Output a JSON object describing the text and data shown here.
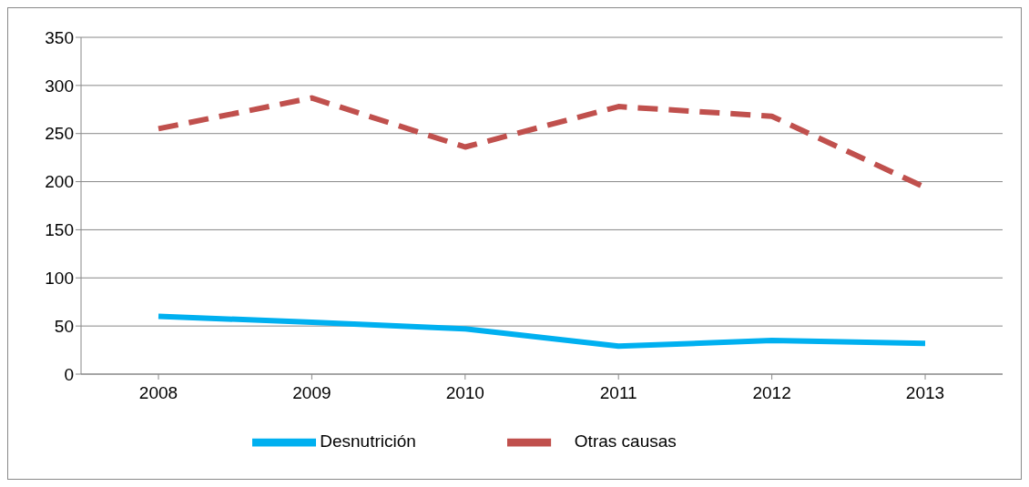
{
  "chart_data": {
    "type": "line",
    "categories": [
      "2008",
      "2009",
      "2010",
      "2011",
      "2012",
      "2013"
    ],
    "series": [
      {
        "name": "Desnutrición",
        "color": "#00b0f0",
        "line_style": "solid",
        "values": [
          60,
          54,
          47,
          29,
          35,
          32
        ]
      },
      {
        "name": "Otras causas",
        "color": "#c0504d",
        "line_style": "dashed",
        "values": [
          255,
          287,
          236,
          278,
          268,
          194
        ]
      }
    ],
    "ylim": [
      0,
      350
    ],
    "yticks": [
      0,
      50,
      100,
      150,
      200,
      250,
      300,
      350
    ],
    "grid": "y",
    "legend": "bottom",
    "marker": "none"
  }
}
